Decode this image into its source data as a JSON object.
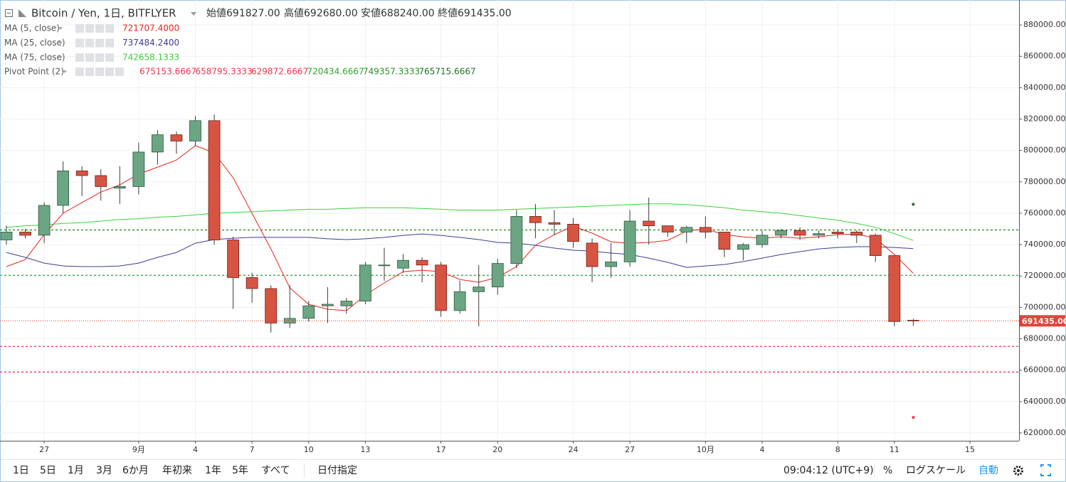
{
  "chart_data": {
    "type": "candlestick",
    "title": "Bitcoin / Yen, 1日, BITFLYER",
    "ohlc_legend": [
      {
        "name": "始値",
        "value": 691827,
        "label": "691827.00"
      },
      {
        "name": "高値",
        "value": 692680,
        "label": "692680.00"
      },
      {
        "name": "安値",
        "value": 688240,
        "label": "688240.00"
      },
      {
        "name": "終値",
        "value": 691435,
        "label": "691435.00"
      }
    ],
    "categories": [
      null,
      null,
      "27",
      null,
      null,
      null,
      null,
      "9月",
      null,
      null,
      "4",
      null,
      null,
      "7",
      null,
      null,
      "10",
      null,
      null,
      "13",
      null,
      null,
      null,
      "17",
      null,
      null,
      "20",
      null,
      null,
      null,
      "24",
      null,
      null,
      "27",
      null,
      null,
      null,
      "10月",
      null,
      null,
      "4",
      null,
      null,
      null,
      "8",
      null,
      null,
      "11",
      null,
      null,
      null,
      "15"
    ],
    "open": [
      743000,
      748000,
      746000,
      765000,
      787000,
      784000,
      776000,
      777000,
      799000,
      810000,
      806000,
      819000,
      743000,
      719000,
      712000,
      690000,
      693000,
      701000,
      701000,
      704000,
      727000,
      725000,
      730000,
      727000,
      698000,
      710000,
      713000,
      728000,
      758000,
      754000,
      753000,
      741000,
      726000,
      729000,
      755000,
      752000,
      748000,
      751000,
      748000,
      737000,
      740000,
      746000,
      749000,
      746000,
      748000,
      748000,
      746000,
      733000,
      691827,
      null,
      null,
      null
    ],
    "high": [
      752000,
      750000,
      767000,
      793000,
      790000,
      788000,
      790000,
      805000,
      813000,
      812000,
      822000,
      823000,
      745000,
      722000,
      714000,
      714000,
      704000,
      713000,
      706000,
      729000,
      738000,
      734000,
      732000,
      729000,
      717000,
      727000,
      731000,
      762000,
      766000,
      762000,
      757000,
      744000,
      741000,
      762000,
      770000,
      752000,
      752000,
      758000,
      748000,
      741000,
      749000,
      750000,
      751000,
      749000,
      749000,
      749000,
      747000,
      733000,
      692680,
      null,
      null,
      null
    ],
    "low": [
      740000,
      744000,
      741000,
      760000,
      771000,
      768000,
      766000,
      772000,
      791000,
      798000,
      803000,
      740000,
      699000,
      703000,
      684000,
      687000,
      691000,
      690000,
      696000,
      702000,
      717000,
      722000,
      716000,
      694000,
      696000,
      688000,
      708000,
      725000,
      744000,
      746000,
      738000,
      716000,
      719000,
      726000,
      740000,
      745000,
      741000,
      744000,
      732000,
      730000,
      738000,
      744000,
      743000,
      744000,
      744000,
      741000,
      729000,
      688000,
      688240,
      null,
      null,
      null
    ],
    "close": [
      748000,
      746000,
      765000,
      787000,
      784000,
      777000,
      777000,
      799000,
      810000,
      806000,
      819000,
      743000,
      719000,
      712000,
      690000,
      693000,
      701000,
      702000,
      704000,
      727000,
      727000,
      730000,
      727000,
      698000,
      710000,
      713000,
      728000,
      758000,
      754000,
      753000,
      742000,
      726000,
      729000,
      755000,
      752000,
      748000,
      751000,
      748000,
      737000,
      740000,
      746000,
      749000,
      746000,
      747000,
      747000,
      746000,
      733000,
      691000,
      691435,
      null,
      null,
      null
    ],
    "up_color": "#6ba583",
    "down_color": "#d75442",
    "series": [
      {
        "name": "MA (5, close)",
        "color": "#e8231b",
        "legend_value": {
          "value": 721707.4,
          "label": "721707.4000"
        },
        "values": [
          726000,
          730500,
          746400,
          760000,
          766800,
          773500,
          778100,
          784900,
          789400,
          793900,
          803000,
          798500,
          782600,
          760000,
          737300,
          712400,
          702000,
          698800,
          697900,
          707900,
          715600,
          722800,
          723700,
          722800,
          717800,
          716000,
          719200,
          726000,
          739600,
          746400,
          751800,
          747300,
          741800,
          740900,
          741400,
          742700,
          748600,
          750000,
          746400,
          745000,
          744100,
          745000,
          744100,
          745000,
          746400,
          746800,
          744100,
          733700,
          721707.4,
          null,
          null,
          null
        ]
      },
      {
        "name": "MA (25, close)",
        "color": "#3c3c96",
        "legend_value": {
          "value": 737484.24,
          "label": "737484.2400"
        },
        "values": [
          735000,
          731900,
          728200,
          726400,
          726000,
          726000,
          726400,
          728200,
          731900,
          735000,
          740900,
          743200,
          744100,
          744600,
          744600,
          744600,
          744600,
          743700,
          743200,
          743700,
          744600,
          745900,
          746800,
          745900,
          744600,
          743200,
          741400,
          740900,
          739600,
          737800,
          736400,
          735900,
          734600,
          733700,
          731400,
          728700,
          725500,
          726400,
          727300,
          729200,
          731400,
          733700,
          735500,
          737300,
          738200,
          738700,
          738700,
          738200,
          737484.24,
          null,
          null,
          null
        ]
      },
      {
        "name": "MA (75, close)",
        "color": "#3ad23a",
        "legend_value": {
          "value": 742658.1333,
          "label": "742658.1333"
        },
        "values": [
          751000,
          752000,
          752500,
          753500,
          754000,
          755000,
          756000,
          756500,
          757500,
          758000,
          759000,
          760000,
          760500,
          761000,
          761500,
          762000,
          762500,
          762500,
          763000,
          763500,
          763500,
          763500,
          763000,
          762500,
          762000,
          762000,
          762000,
          762500,
          763000,
          763500,
          764000,
          764500,
          765000,
          765500,
          766000,
          766000,
          765500,
          764500,
          763500,
          762000,
          761000,
          760000,
          758500,
          757000,
          755500,
          753500,
          751000,
          747000,
          742658.1333,
          null,
          null,
          null
        ]
      }
    ],
    "pivot": {
      "name": "Pivot Point (2)",
      "levels": [
        {
          "value": 675153.6667,
          "color": "#f0364f",
          "line": true
        },
        {
          "value": 658795.3333,
          "color": "#f0364f",
          "line": true
        },
        {
          "value": 629872.6667,
          "color": "#f0364f",
          "line": false
        },
        {
          "value": 720434.6667,
          "color": "#2fa52f",
          "line": true
        },
        {
          "value": 749357.3333,
          "color": "#2a8f2a",
          "line": true
        },
        {
          "value": 765715.6667,
          "color": "#1f6e1f",
          "line": false
        }
      ]
    },
    "ylim": [
      615000,
      895900
    ],
    "yticks": [
      {
        "value": 880000,
        "label": "880000.00"
      },
      {
        "value": 860000,
        "label": "860000.00"
      },
      {
        "value": 840000,
        "label": "840000.00"
      },
      {
        "value": 820000,
        "label": "820000.00"
      },
      {
        "value": 800000,
        "label": "800000.00"
      },
      {
        "value": 780000,
        "label": "780000.00"
      },
      {
        "value": 760000,
        "label": "760000.00"
      },
      {
        "value": 740000,
        "label": "740000.00"
      },
      {
        "value": 720000,
        "label": "720000.00"
      },
      {
        "value": 700000,
        "label": "700000.00"
      },
      {
        "value": 680000,
        "label": "680000.00"
      },
      {
        "value": 660000,
        "label": "660000.00"
      },
      {
        "value": 640000,
        "label": "640000.00"
      },
      {
        "value": 620000,
        "label": "620000.00"
      }
    ],
    "grid": true
  },
  "toolbar": {
    "ranges": [
      "1日",
      "5日",
      "1月",
      "3月",
      "6か月",
      "年初来",
      "1年",
      "5年",
      "すべて"
    ],
    "date_range": "日付指定",
    "time": "09:04:12 (UTC+9)",
    "percent": "%",
    "log_scale": "ログスケール",
    "auto": "自動"
  }
}
